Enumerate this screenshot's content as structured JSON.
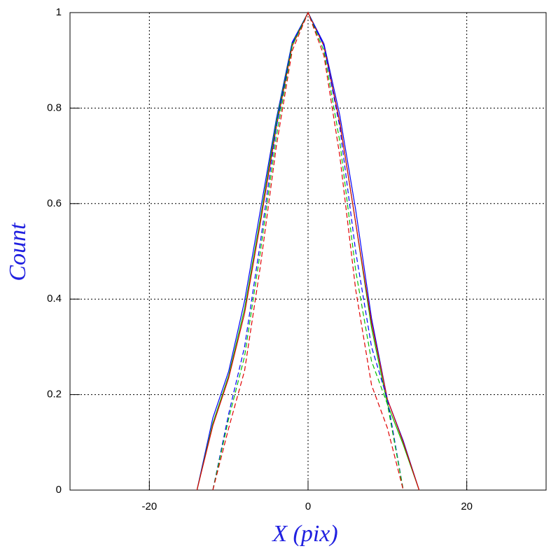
{
  "chart_data": {
    "type": "line",
    "x_label": "X (pix)",
    "y_label": "Count",
    "xlim": [
      -30,
      30
    ],
    "ylim": [
      0,
      1
    ],
    "xticks": [
      -20,
      0,
      20
    ],
    "yticks": [
      0,
      0.2,
      0.4,
      0.6,
      0.8,
      1
    ],
    "grid": true,
    "series": [
      {
        "color": "#0000ff",
        "dashed": false,
        "x": [
          -14,
          -12,
          -10,
          -8,
          -6,
          -4,
          -2,
          0,
          2,
          4,
          6,
          8,
          10,
          12,
          14
        ],
        "values": [
          0,
          0.151,
          0.249,
          0.396,
          0.587,
          0.777,
          0.938,
          1,
          0.935,
          0.785,
          0.587,
          0.36,
          0.19,
          0.103,
          0
        ]
      },
      {
        "color": "#00c000",
        "dashed": false,
        "x": [
          -14,
          -12,
          -10,
          -8,
          -6,
          -4,
          -2,
          0,
          2,
          4,
          6,
          8,
          10,
          12,
          14
        ],
        "values": [
          0,
          0.14,
          0.24,
          0.38,
          0.57,
          0.77,
          0.935,
          1,
          0.93,
          0.77,
          0.56,
          0.34,
          0.18,
          0.095,
          0
        ]
      },
      {
        "color": "#e00000",
        "dashed": false,
        "x": [
          -14,
          -12,
          -10,
          -8,
          -6,
          -4,
          -2,
          0,
          2,
          4,
          6,
          8,
          10,
          12,
          14
        ],
        "values": [
          0,
          0.135,
          0.235,
          0.37,
          0.56,
          0.76,
          0.93,
          1,
          0.93,
          0.77,
          0.56,
          0.35,
          0.19,
          0.1,
          0
        ]
      },
      {
        "color": "#0000ff",
        "dashed": true,
        "x": [
          -12,
          -10,
          -8,
          -6,
          -4,
          -2,
          0,
          2,
          4,
          6,
          8,
          10,
          12
        ],
        "values": [
          0,
          0.16,
          0.3,
          0.52,
          0.76,
          0.935,
          1,
          0.93,
          0.76,
          0.5,
          0.3,
          0.19,
          0
        ]
      },
      {
        "color": "#00c000",
        "dashed": true,
        "x": [
          -12,
          -10,
          -8,
          -6,
          -4,
          -2,
          0,
          2,
          4,
          6,
          8,
          10,
          12
        ],
        "values": [
          0,
          0.15,
          0.28,
          0.5,
          0.74,
          0.93,
          1,
          0.92,
          0.73,
          0.46,
          0.27,
          0.18,
          0
        ]
      },
      {
        "color": "#e00000",
        "dashed": true,
        "x": [
          -12,
          -10,
          -8,
          -6,
          -4,
          -2,
          0,
          2,
          4,
          6,
          8,
          10,
          12
        ],
        "values": [
          0,
          0.13,
          0.25,
          0.47,
          0.72,
          0.92,
          1,
          0.91,
          0.7,
          0.42,
          0.22,
          0.13,
          0
        ]
      }
    ]
  }
}
